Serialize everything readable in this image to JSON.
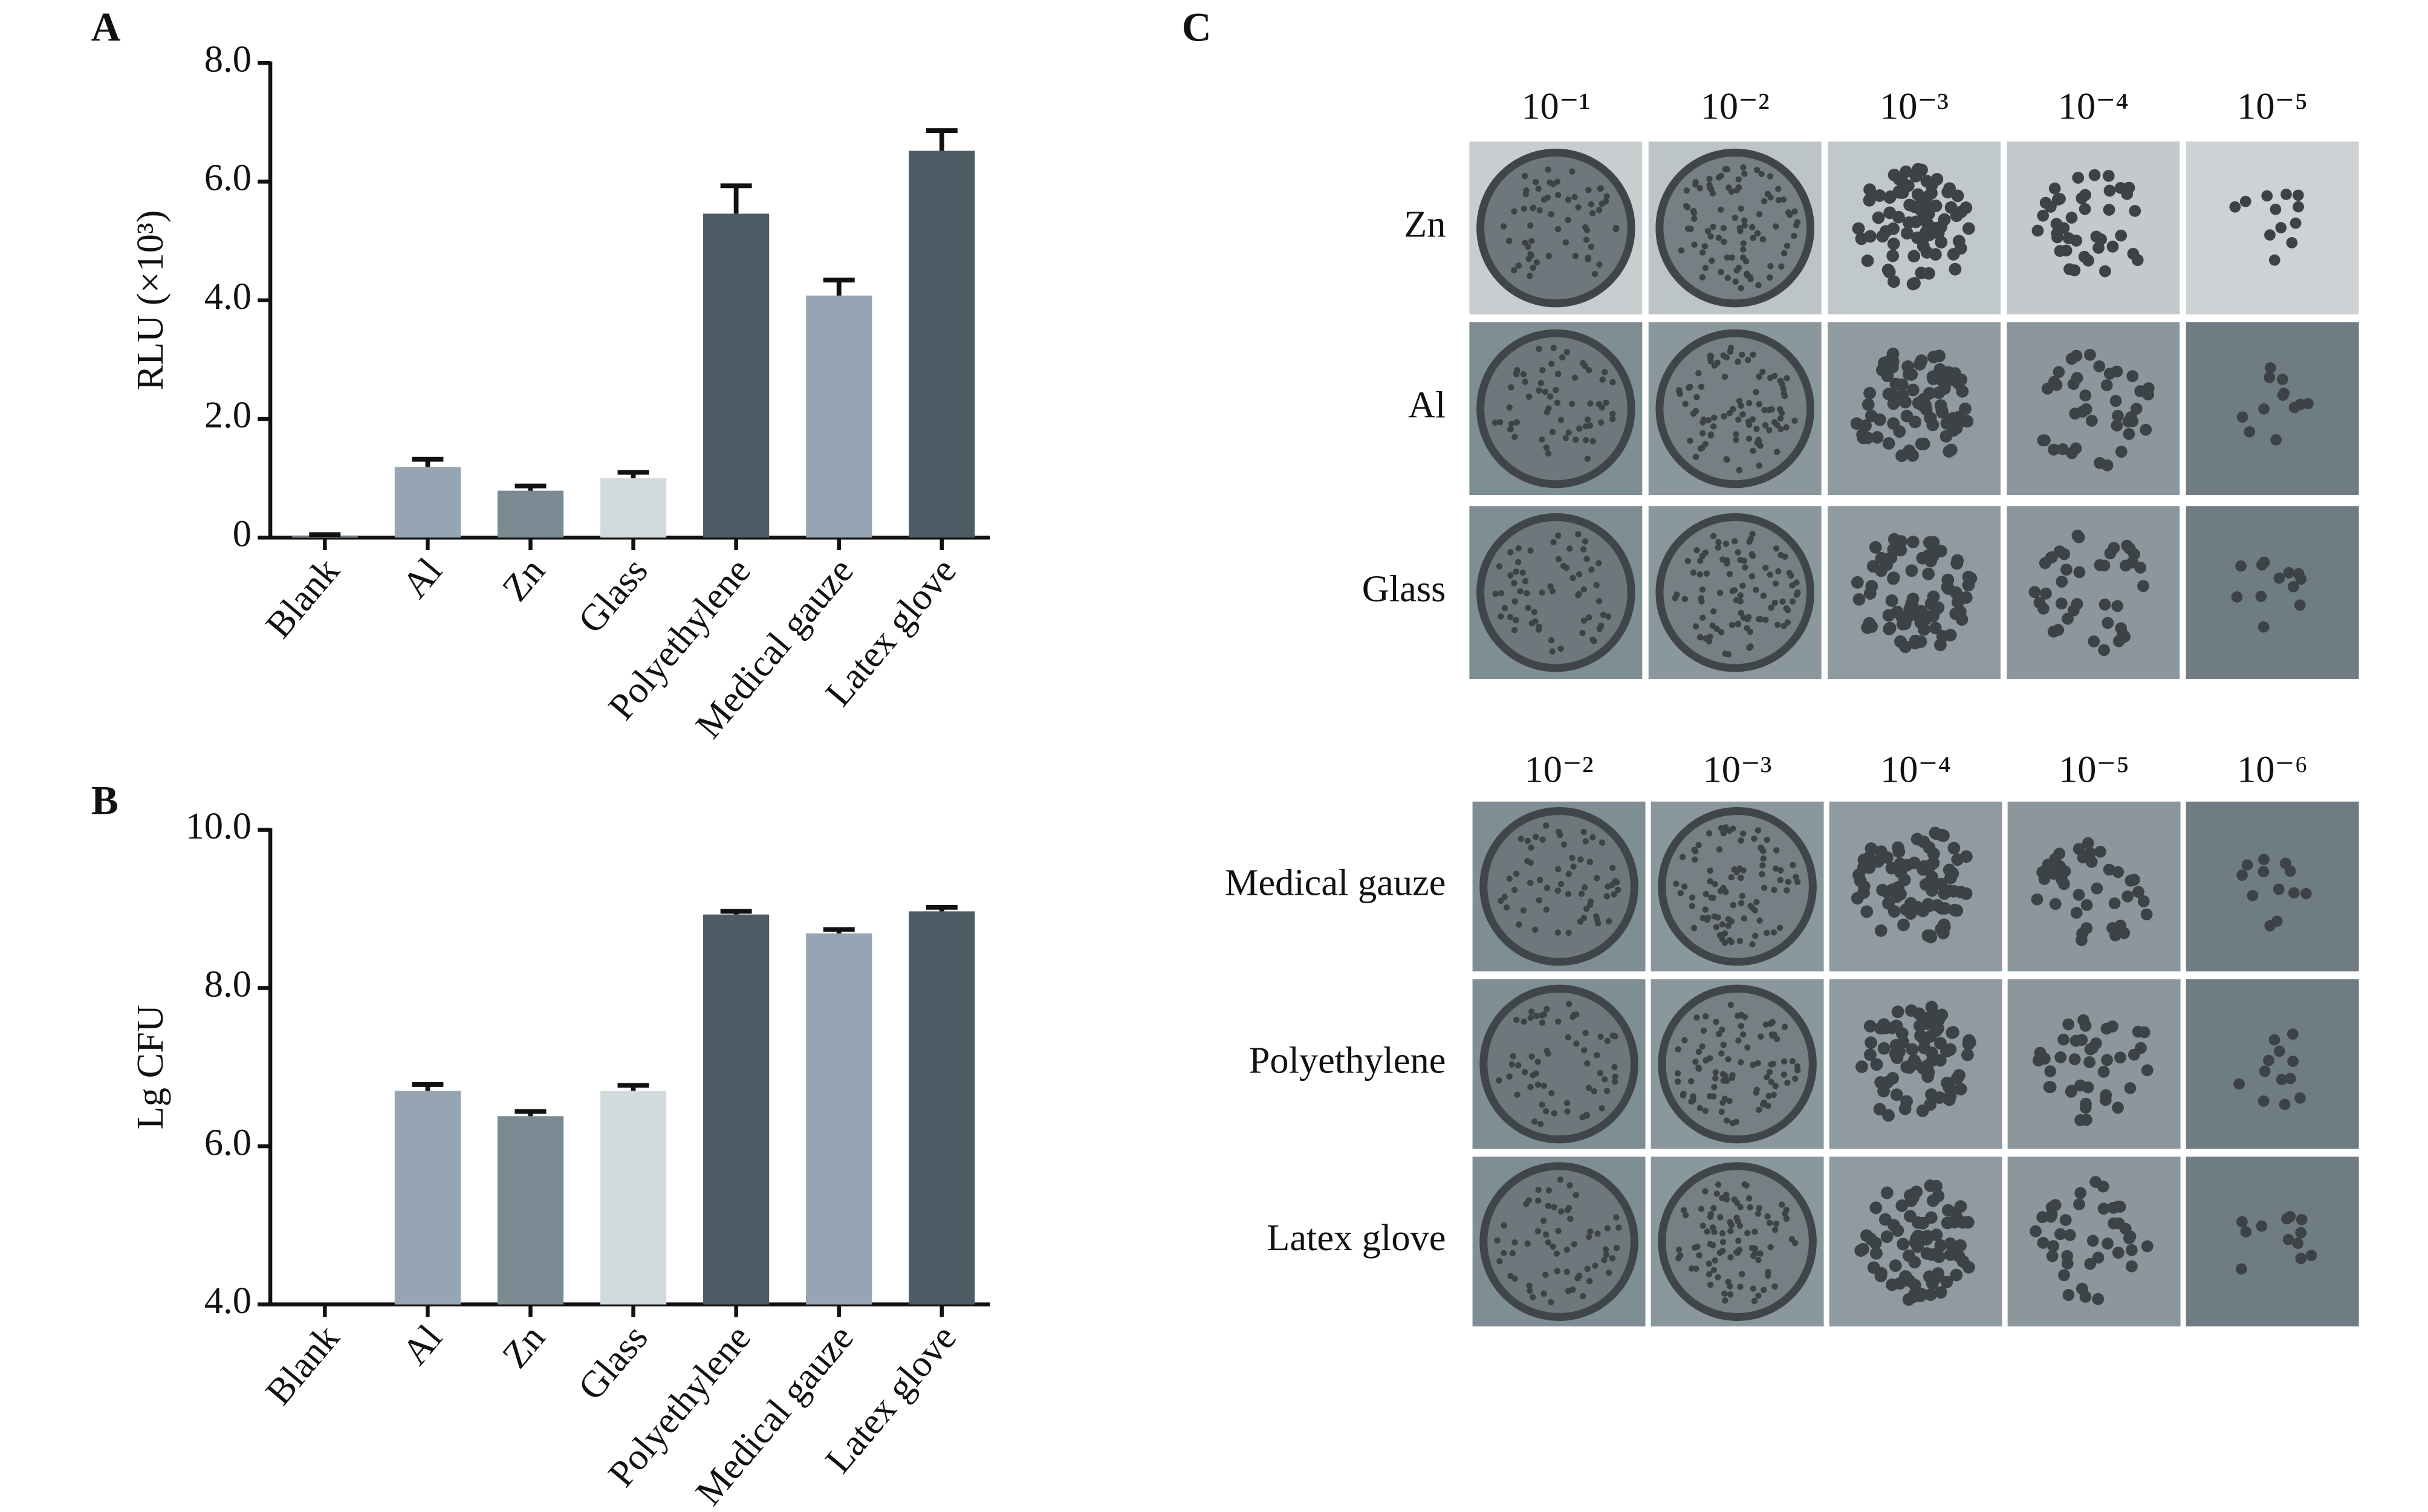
{
  "panel_labels": [
    "A",
    "B",
    "C"
  ],
  "chart_data": [
    {
      "type": "bar",
      "y_label": "RLU (×10³)",
      "categories": [
        "Blank",
        "Al",
        "Zn",
        "Glass",
        "Polyethylene",
        "Medical gauze",
        "Latex glove"
      ],
      "values": [
        0.02,
        1.19,
        0.79,
        1.0,
        5.46,
        4.08,
        6.52
      ],
      "errors": [
        0.03,
        0.13,
        0.08,
        0.1,
        0.47,
        0.26,
        0.34
      ],
      "colors": [
        "#95a5b3",
        "#95a5b3",
        "#7a8a93",
        "#d3dadd",
        "#4d5b65",
        "#95a5b3",
        "#4d5b65"
      ],
      "ylim": [
        0,
        8
      ],
      "yticks": [
        0,
        {
          "value": 2,
          "label": "2.0"
        },
        {
          "value": 4,
          "label": "4.0"
        },
        {
          "value": 6,
          "label": "6.0"
        },
        {
          "value": 8,
          "label": "8.0"
        }
      ]
    },
    {
      "type": "bar",
      "y_label": "Lg CFU",
      "categories": [
        "Blank",
        "Al",
        "Zn",
        "Glass",
        "Polyethylene",
        "Medical gauze",
        "Latex glove"
      ],
      "values": [
        null,
        6.7,
        6.38,
        6.7,
        8.93,
        8.69,
        8.97
      ],
      "errors": [
        null,
        0.08,
        0.06,
        0.07,
        0.04,
        0.05,
        0.05
      ],
      "colors": [
        "#95a5b3",
        "#95a5b3",
        "#7a8a93",
        "#d3dadd",
        "#4d5b65",
        "#95a5b3",
        "#4d5b65"
      ],
      "ylim": [
        4,
        10
      ],
      "yticks": [
        {
          "value": 4,
          "label": "4.0"
        },
        {
          "value": 6,
          "label": "6.0"
        },
        {
          "value": 8,
          "label": "8.0"
        },
        {
          "value": 10,
          "label": "10.0"
        }
      ]
    }
  ],
  "plates": [
    {
      "dilutions": [
        "10⁻¹",
        "10⁻²",
        "10⁻³",
        "10⁻⁴",
        "10⁻⁵"
      ],
      "rows": [
        "Zn",
        "Al",
        "Glass"
      ]
    },
    {
      "dilutions": [
        "10⁻²",
        "10⁻³",
        "10⁻⁴",
        "10⁻⁵",
        "10⁻⁶"
      ],
      "rows": [
        "Medical gauze",
        "Polyethylene",
        "Latex glove"
      ]
    }
  ]
}
